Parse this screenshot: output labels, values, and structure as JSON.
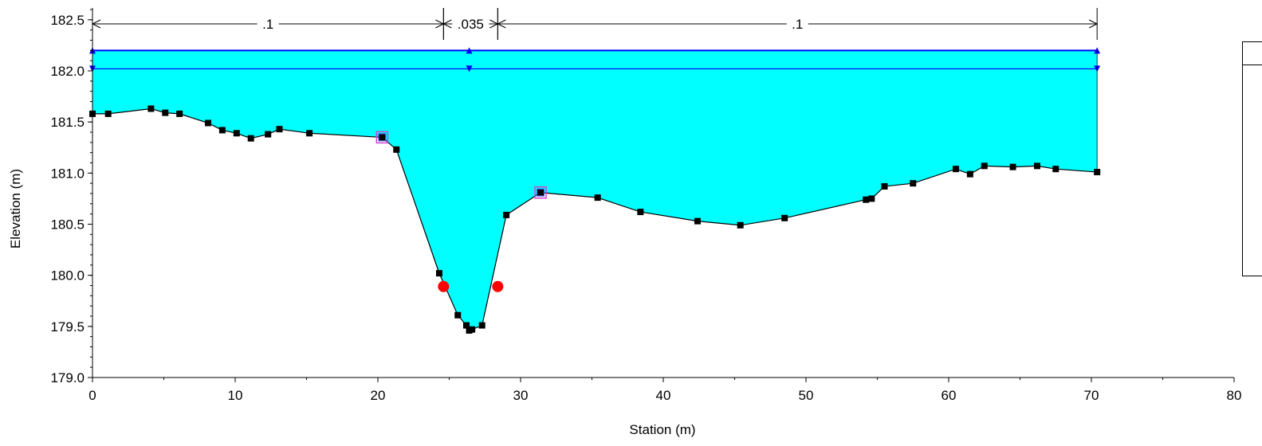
{
  "colors": {
    "water_fill": "#00ffff",
    "ws_line": "#0000ff",
    "ground_line": "#000000",
    "ground_point": "#000000",
    "bank_station": "#ff0000",
    "levee_marker": "#cc44cc"
  },
  "chart_data": {
    "type": "area",
    "title": "",
    "xlabel": "Station (m)",
    "ylabel": "Elevation (m)",
    "xlim": [
      0,
      80
    ],
    "ylim": [
      179.0,
      182.6
    ],
    "xticks": [
      0,
      10,
      20,
      30,
      40,
      50,
      60,
      70,
      80
    ],
    "yticks": [
      179.0,
      179.5,
      180.0,
      180.5,
      181.0,
      181.5,
      182.0,
      182.5
    ],
    "xtick_labels": [
      "0",
      "10",
      "20",
      "30",
      "40",
      "50",
      "60",
      "70",
      "80"
    ],
    "ytick_labels": [
      "179.0",
      "179.5",
      "180.0",
      "180.5",
      "181.0",
      "181.5",
      "182.0",
      "182.5"
    ],
    "grid": false,
    "ground": {
      "x": [
        0,
        1.1,
        4.1,
        5.1,
        6.1,
        8.1,
        9.1,
        10.1,
        11.1,
        12.3,
        13.1,
        15.2,
        20.3,
        21.3,
        24.3,
        25.6,
        26.2,
        26.4,
        26.6,
        27.3,
        29.0,
        31.4,
        35.4,
        38.4,
        42.4,
        45.4,
        48.5,
        54.2,
        54.6,
        55.5,
        57.5,
        60.5,
        61.5,
        62.5,
        64.5,
        66.2,
        67.5,
        70.4
      ],
      "y": [
        181.58,
        181.58,
        181.63,
        181.59,
        181.58,
        181.49,
        181.42,
        181.39,
        181.34,
        181.38,
        181.43,
        181.39,
        181.35,
        181.23,
        180.02,
        179.61,
        179.51,
        179.46,
        179.47,
        179.51,
        180.59,
        180.81,
        180.76,
        180.62,
        180.53,
        180.49,
        180.56,
        180.74,
        180.75,
        180.87,
        180.9,
        181.04,
        180.99,
        181.07,
        181.06,
        181.07,
        181.04,
        181.01
      ]
    },
    "water_surfaces": [
      {
        "elevation": 182.2,
        "x_start": 0,
        "x_end": 70.4,
        "marker": "triangle-up"
      },
      {
        "elevation": 182.02,
        "x_start": 0,
        "x_end": 70.4,
        "marker": "triangle-down"
      }
    ],
    "water_marker_x": [
      0,
      26.4,
      70.4
    ],
    "bank_stations": [
      {
        "x": 24.6,
        "y": 179.89
      },
      {
        "x": 28.4,
        "y": 179.89
      }
    ],
    "ineffective_markers": [
      {
        "x": 20.3,
        "y": 181.35
      },
      {
        "x": 31.4,
        "y": 180.81
      }
    ],
    "mannings_n": [
      {
        "label": ".1",
        "x_start": 0,
        "x_end": 24.6
      },
      {
        "label": ".035",
        "x_start": 24.6,
        "x_end": 28.4
      },
      {
        "label": ".1",
        "x_start": 28.4,
        "x_end": 70.4
      }
    ]
  }
}
